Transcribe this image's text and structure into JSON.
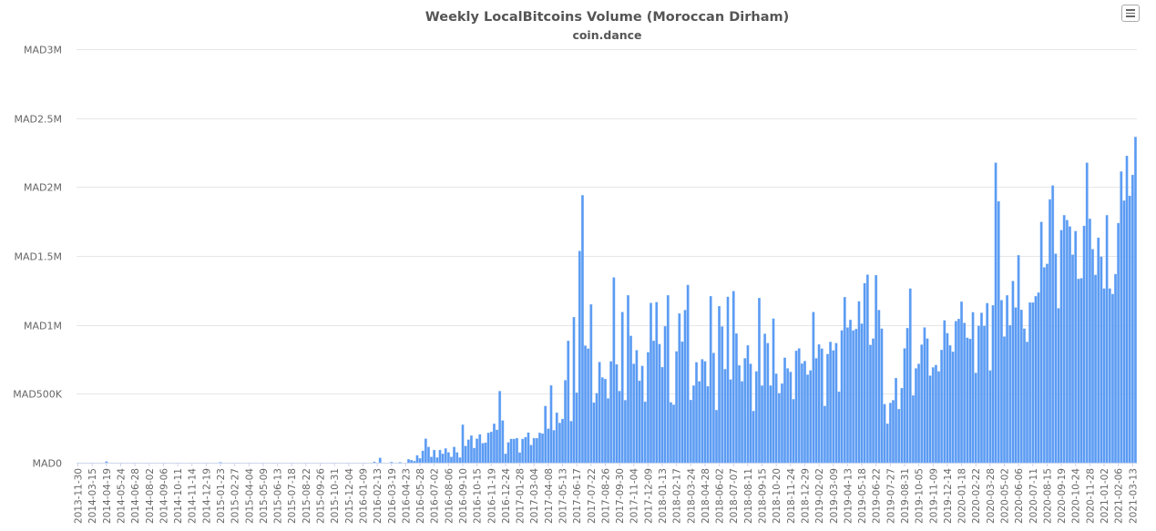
{
  "chart_data": {
    "type": "bar",
    "title": "Weekly LocalBitcoins Volume (Moroccan Dirham)",
    "subtitle": "coin.dance",
    "xlabel": "",
    "ylabel": "",
    "value_unit": "thousand MAD",
    "ylim": [
      0,
      3000
    ],
    "grid": true,
    "legend": "none",
    "bar_color": "#5a9bf3",
    "y_ticks": [
      {
        "value": 0,
        "label": "MAD0"
      },
      {
        "value": 500,
        "label": "MAD500K"
      },
      {
        "value": 1000,
        "label": "MAD1M"
      },
      {
        "value": 1500,
        "label": "MAD1.5M"
      },
      {
        "value": 2000,
        "label": "MAD2M"
      },
      {
        "value": 2500,
        "label": "MAD2.5M"
      },
      {
        "value": 3000,
        "label": "MAD3M"
      }
    ],
    "x_tick_every": 5,
    "x_tick_labels": [
      "2013-11-30",
      "2014-03-15",
      "2014-04-19",
      "2014-05-24",
      "2014-06-28",
      "2014-08-02",
      "2014-09-06",
      "2014-10-11",
      "2014-11-14",
      "2014-12-19",
      "2015-01-23",
      "2015-02-27",
      "2015-04-04",
      "2015-05-09",
      "2015-06-13",
      "2015-07-18",
      "2015-08-22",
      "2015-09-26",
      "2015-10-31",
      "2015-12-04",
      "2016-01-09",
      "2016-02-13",
      "2016-03-19",
      "2016-04-23",
      "2016-05-28",
      "2016-07-02",
      "2016-08-06",
      "2016-09-10",
      "2016-10-15",
      "2016-11-19",
      "2016-12-24",
      "2017-01-28",
      "2017-03-04",
      "2017-04-08",
      "2017-05-13",
      "2017-06-17",
      "2017-07-22",
      "2017-08-26",
      "2017-09-30",
      "2017-11-04",
      "2017-12-09",
      "2018-01-13",
      "2018-02-17",
      "2018-03-24",
      "2018-04-28",
      "2018-06-02",
      "2018-07-07",
      "2018-08-11",
      "2018-09-15",
      "2018-10-20",
      "2018-11-24",
      "2018-12-29",
      "2019-02-02",
      "2019-03-09",
      "2019-04-13",
      "2019-05-18",
      "2019-06-22",
      "2019-07-27",
      "2019-08-31",
      "2019-10-05",
      "2019-11-09",
      "2019-12-14",
      "2020-01-18",
      "2020-02-22",
      "2020-03-28",
      "2020-05-02",
      "2020-06-06",
      "2020-07-11",
      "2020-08-15",
      "2020-09-19",
      "2020-10-24",
      "2020-11-28",
      "2021-01-02",
      "2021-02-06",
      "2021-03-13"
    ],
    "values": [
      0,
      0,
      0,
      0,
      0,
      0,
      0,
      0,
      0,
      0,
      8,
      0,
      0,
      0,
      0,
      0,
      0,
      0,
      0,
      0,
      0,
      0,
      0,
      0,
      0,
      0,
      0,
      0,
      0,
      0,
      0,
      0,
      0,
      0,
      0,
      0,
      0,
      0,
      0,
      0,
      0,
      0,
      0,
      0,
      0,
      0,
      0,
      0,
      0,
      0,
      3,
      0,
      0,
      0,
      0,
      0,
      0,
      0,
      0,
      0,
      0,
      0,
      0,
      0,
      0,
      0,
      0,
      0,
      0,
      0,
      0,
      0,
      0,
      0,
      0,
      0,
      0,
      0,
      0,
      0,
      0,
      0,
      0,
      0,
      0,
      0,
      0,
      0,
      0,
      0,
      0,
      0,
      0,
      0,
      0,
      0,
      0,
      0,
      0,
      0,
      0,
      0,
      0,
      0,
      6,
      0,
      35,
      0,
      0,
      0,
      4,
      0,
      0,
      3,
      0,
      0,
      24,
      18,
      11,
      53,
      31,
      86,
      174,
      114,
      42,
      92,
      37,
      92,
      64,
      103,
      75,
      42,
      114,
      75,
      37,
      275,
      121,
      167,
      196,
      106,
      174,
      205,
      141,
      145,
      216,
      224,
      282,
      238,
      519,
      306,
      64,
      147,
      172,
      172,
      178,
      73,
      172,
      185,
      218,
      128,
      178,
      178,
      216,
      211,
      411,
      246,
      561,
      235,
      363,
      288,
      317,
      598,
      884,
      301,
      1056,
      508,
      1536,
      1940,
      849,
      827,
      1148,
      436,
      504,
      730,
      618,
      607,
      466,
      735,
      1344,
      713,
      519,
      1093,
      453,
      1214,
      920,
      717,
      816,
      594,
      702,
      442,
      801,
      1159,
      884,
      1164,
      860,
      693,
      990,
      1214,
      438,
      420,
      807,
      1082,
      878,
      1107,
      1289,
      455,
      559,
      728,
      590,
      750,
      735,
      554,
      1208,
      796,
      381,
      1135,
      988,
      678,
      1203,
      603,
      1245,
      937,
      706,
      590,
      757,
      851,
      717,
      374,
      662,
      1195,
      559,
      935,
      867,
      559,
      1045,
      645,
      504,
      574,
      761,
      684,
      658,
      460,
      812,
      829,
      719,
      737,
      638,
      669,
      1093,
      757,
      858,
      827,
      411,
      788,
      876,
      814,
      867,
      515,
      959,
      1201,
      981,
      1036,
      959,
      970,
      1170,
      1008,
      1302,
      1364,
      854,
      900,
      1360,
      1107,
      972,
      425,
      282,
      433,
      453,
      614,
      389,
      541,
      829,
      977,
      1263,
      488,
      684,
      717,
      856,
      981,
      900,
      631,
      691,
      708,
      662,
      818,
      1032,
      939,
      851,
      805,
      1027,
      1043,
      1168,
      1014,
      906,
      898,
      1091,
      651,
      992,
      1087,
      992,
      1157,
      669,
      1142,
      2176,
      1896,
      1179,
      915,
      1214,
      997,
      1318,
      1126,
      1505,
      1109,
      972,
      876,
      1162,
      1162,
      1208,
      1234,
      1747,
      1417,
      1443,
      1910,
      2011,
      1516,
      1120,
      1687,
      1795,
      1760,
      1714,
      1509,
      1680,
      1333,
      1338,
      1718,
      2176,
      1769,
      1549,
      1362,
      1632,
      1494,
      1263,
      1795,
      1263,
      1223,
      1368,
      1738,
      2112,
      1901,
      2226,
      1936,
      2088,
      2363
    ]
  },
  "menu": {
    "icon": "hamburger-menu-icon"
  }
}
